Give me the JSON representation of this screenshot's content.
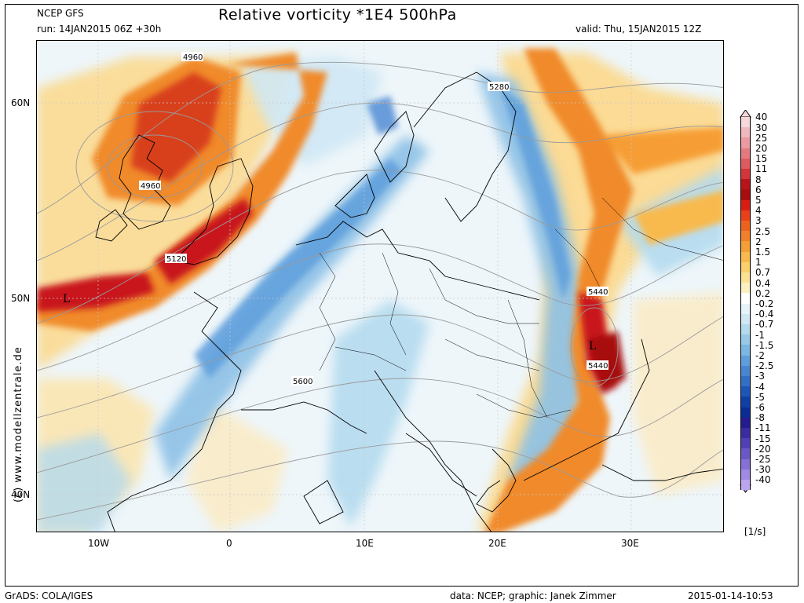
{
  "header": {
    "model": "NCEP GFS",
    "run": "run: 14JAN2015 06Z +30h",
    "title": "Relative vorticity *1E4 500hPa",
    "valid": "valid: Thu, 15JAN2015 12Z"
  },
  "footer": {
    "left": "GrADS: COLA/IGES",
    "credit": "data: NCEP; graphic: Janek Zimmer",
    "timestamp": "2015-01-14-10:53"
  },
  "watermark": "(c) www.modellzentrale.de",
  "axes": {
    "lat_labels": [
      "60N",
      "50N",
      "40N"
    ],
    "lon_labels": [
      "10W",
      "0",
      "10E",
      "20E",
      "30E"
    ]
  },
  "map_labels": {
    "contours": [
      "4960",
      "4960",
      "5280",
      "5120",
      "5440",
      "5440",
      "5600"
    ],
    "lows": [
      "L",
      "L"
    ]
  },
  "legend": {
    "unit": "[1/s]",
    "levels": [
      "40",
      "30",
      "25",
      "20",
      "15",
      "11",
      "8",
      "6",
      "5",
      "4",
      "3",
      "2.5",
      "2",
      "1.5",
      "1",
      "0.7",
      "0.4",
      "0.2",
      "-0.2",
      "-0.4",
      "-0.7",
      "-1",
      "-1.5",
      "-2",
      "-2.5",
      "-3",
      "-4",
      "-5",
      "-6",
      "-8",
      "-11",
      "-15",
      "-20",
      "-25",
      "-30",
      "-40"
    ],
    "colors": [
      "#f6d8da",
      "#f0b8bc",
      "#ea9aa0",
      "#e47a80",
      "#de5a5e",
      "#d2353a",
      "#b8141a",
      "#a80e10",
      "#d81e12",
      "#e8401a",
      "#ee6220",
      "#f2802a",
      "#f69e36",
      "#f8ba4e",
      "#fad06c",
      "#fce194",
      "#fdf0c0",
      "#ffffff",
      "#e6f4fa",
      "#cfe8f4",
      "#b4daee",
      "#98cae8",
      "#7cb6e2",
      "#5e9edc",
      "#4886d2",
      "#3270c8",
      "#1e56b8",
      "#1040a6",
      "#0a2c94",
      "#241c8e",
      "#3a2ca0",
      "#5040b4",
      "#6a58c6",
      "#8470d6",
      "#a08ae4",
      "#bba6ee"
    ]
  },
  "colors": {
    "positive_strong": "#c8141a",
    "positive_mid": "#f08a2a",
    "positive_weak": "#fcd88a",
    "negative_weak": "#cfe8f4",
    "negative_mid": "#8cc0e6",
    "negative_strong": "#4a88d4"
  }
}
